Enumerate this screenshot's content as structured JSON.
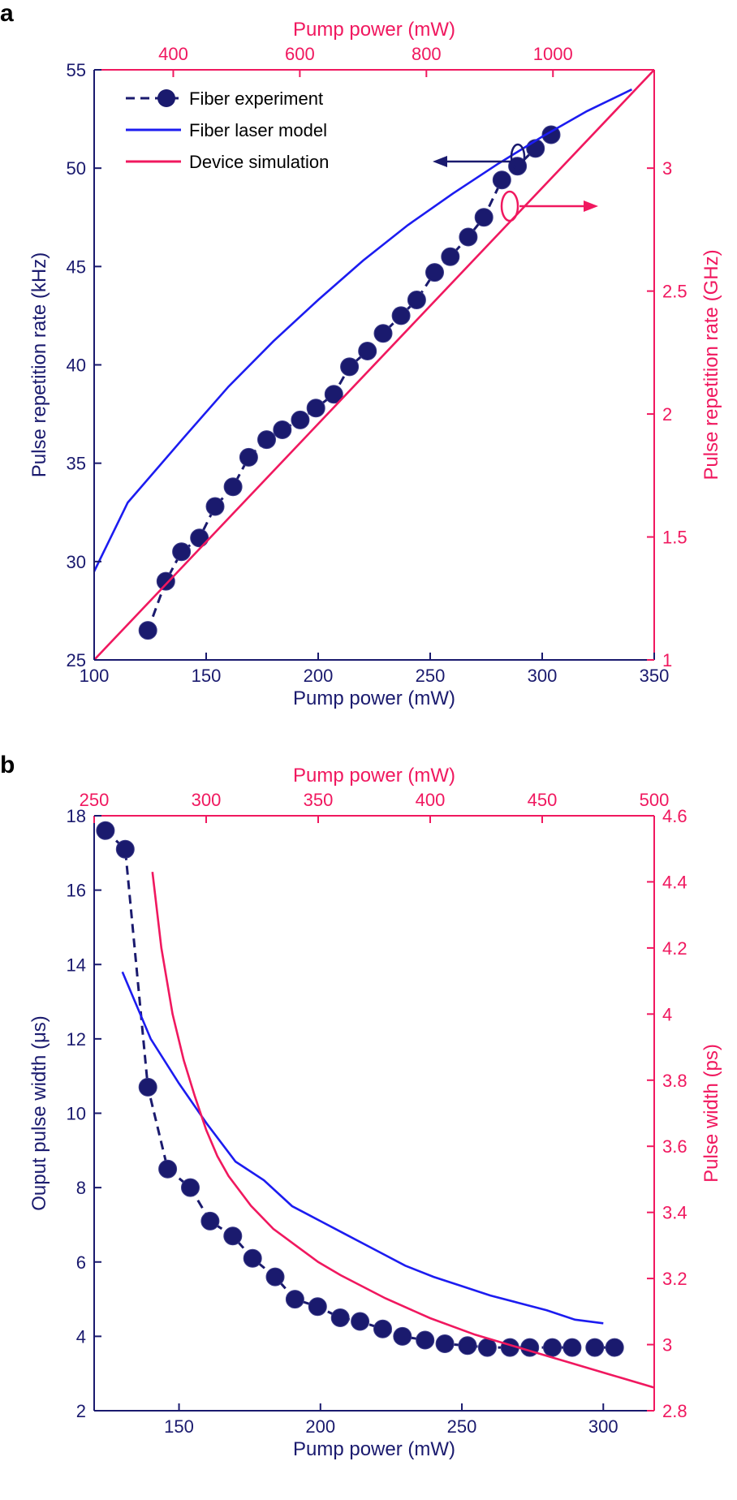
{
  "colors": {
    "navy": "#1a1a6e",
    "blue": "#1c1cf0",
    "pink": "#f0185f"
  },
  "chart_data": [
    {
      "panel_label": "a",
      "type": "line",
      "x_bottom": {
        "label": "Pump power (mW)",
        "lim": [
          100,
          350
        ],
        "ticks": [
          100,
          150,
          200,
          250,
          300,
          350
        ]
      },
      "x_top": {
        "label": "Pump power (mW)",
        "lim": [
          275,
          1160
        ],
        "ticks": [
          400,
          600,
          800,
          1000
        ]
      },
      "y_left": {
        "label": "Pulse repetition rate (kHz)",
        "lim": [
          25,
          55
        ],
        "ticks": [
          25,
          30,
          35,
          40,
          45,
          50,
          55
        ]
      },
      "y_right": {
        "label": "Pulse repetition rate (GHz)",
        "lim": [
          1,
          3.4
        ],
        "ticks": [
          1,
          1.5,
          2,
          2.5,
          3
        ]
      },
      "legend": {
        "placement": "top-left",
        "entries": [
          "Fiber experiment",
          "Fiber laser model",
          "Device simulation"
        ]
      },
      "series": [
        {
          "name": "Fiber experiment",
          "axes": "bottom-left",
          "style": "markers-dashed",
          "x": [
            124,
            132,
            139,
            147,
            154,
            162,
            169,
            177,
            184,
            192,
            199,
            207,
            214,
            222,
            229,
            237,
            244,
            252,
            259,
            267,
            274,
            282,
            289,
            297,
            304
          ],
          "y": [
            26.5,
            29.0,
            30.5,
            31.2,
            32.8,
            33.8,
            35.3,
            36.2,
            36.7,
            37.2,
            37.8,
            38.5,
            39.9,
            40.7,
            41.6,
            42.5,
            43.3,
            44.7,
            45.5,
            46.5,
            47.5,
            49.4,
            50.1,
            51.0,
            51.7
          ]
        },
        {
          "name": "Fiber laser model",
          "axes": "bottom-left",
          "style": "line",
          "x": [
            100,
            115,
            140,
            160,
            180,
            200,
            220,
            240,
            260,
            280,
            300,
            320,
            340
          ],
          "y": [
            29.5,
            33.0,
            36.3,
            38.9,
            41.2,
            43.3,
            45.3,
            47.1,
            48.7,
            50.2,
            51.6,
            52.9,
            54.0
          ]
        },
        {
          "name": "Device simulation",
          "axes": "top-right",
          "style": "line",
          "x": [
            275,
            1160
          ],
          "y": [
            1.0,
            3.4
          ]
        }
      ],
      "annotations": [
        "left arrow to kHz axis",
        "right arrow to GHz axis"
      ]
    },
    {
      "panel_label": "b",
      "type": "line",
      "x_bottom": {
        "label": "Pump power (mW)",
        "lim": [
          120,
          318
        ],
        "ticks": [
          150,
          200,
          250,
          300
        ]
      },
      "x_top": {
        "label": "Pump power (mW)",
        "lim": [
          250,
          500
        ],
        "ticks": [
          250,
          300,
          350,
          400,
          450,
          500
        ]
      },
      "y_left": {
        "label": "Ouput pulse width (μs)",
        "lim": [
          2,
          18
        ],
        "ticks": [
          2,
          4,
          6,
          8,
          10,
          12,
          14,
          16,
          18
        ]
      },
      "y_right": {
        "label": "Pulse width (ps)",
        "lim": [
          2.8,
          4.6
        ],
        "ticks": [
          2.8,
          3,
          3.2,
          3.4,
          3.6,
          3.8,
          4,
          4.2,
          4.4,
          4.6
        ]
      },
      "series": [
        {
          "name": "Fiber experiment",
          "axes": "bottom-left",
          "style": "markers-dashed",
          "x": [
            124,
            131,
            139,
            146,
            154,
            161,
            169,
            176,
            184,
            191,
            199,
            207,
            214,
            222,
            229,
            237,
            244,
            252,
            259,
            267,
            274,
            282,
            289,
            297,
            304
          ],
          "y": [
            17.6,
            17.1,
            10.7,
            8.5,
            8.0,
            7.1,
            6.7,
            6.1,
            5.6,
            5.0,
            4.8,
            4.5,
            4.4,
            4.2,
            4.0,
            3.9,
            3.8,
            3.75,
            3.7,
            3.7,
            3.7,
            3.7,
            3.7,
            3.7,
            3.7
          ]
        },
        {
          "name": "Fiber laser model",
          "axes": "bottom-left",
          "style": "line",
          "x": [
            130,
            140,
            150,
            160,
            170,
            180,
            190,
            200,
            210,
            220,
            230,
            240,
            250,
            260,
            270,
            280,
            290,
            300
          ],
          "y": [
            13.8,
            12.0,
            10.8,
            9.7,
            8.7,
            8.2,
            7.5,
            7.1,
            6.7,
            6.3,
            5.9,
            5.6,
            5.35,
            5.1,
            4.9,
            4.7,
            4.45,
            4.35
          ]
        },
        {
          "name": "Device simulation",
          "axes": "top-right",
          "style": "line",
          "x": [
            276,
            280,
            285,
            290,
            295,
            300,
            305,
            310,
            320,
            330,
            340,
            350,
            360,
            380,
            400,
            420,
            440,
            460,
            480,
            500
          ],
          "y": [
            4.43,
            4.2,
            4.0,
            3.86,
            3.75,
            3.65,
            3.57,
            3.51,
            3.42,
            3.35,
            3.3,
            3.25,
            3.21,
            3.14,
            3.08,
            3.03,
            2.99,
            2.95,
            2.91,
            2.87
          ]
        }
      ]
    }
  ]
}
